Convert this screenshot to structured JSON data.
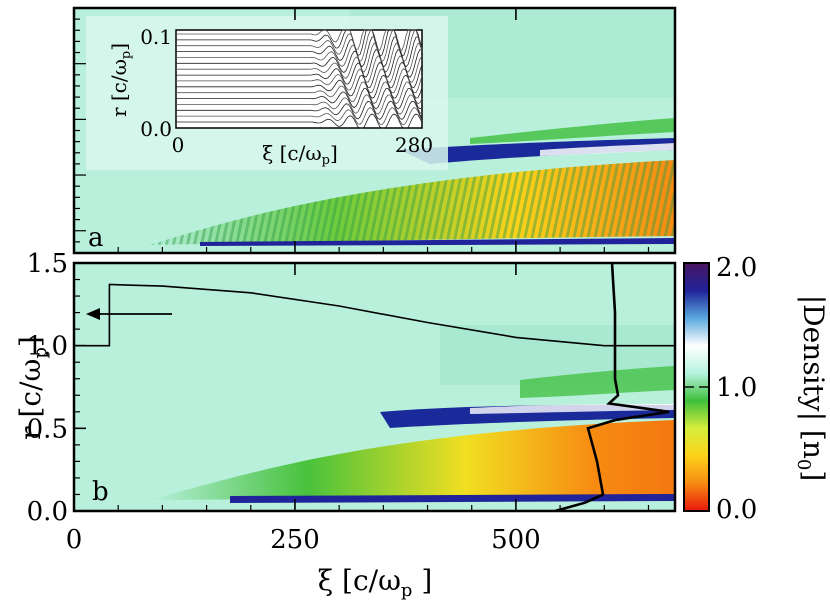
{
  "chart_data": [
    {
      "panel": "a",
      "type": "heatmap",
      "label": "a",
      "x_ticks": [
        250,
        500
      ],
      "xlim": [
        0,
        680
      ],
      "inset": {
        "type": "line",
        "xlabel": "ξ [c/ω",
        "xlabel_sub": "p",
        "xlabel_end": "]",
        "ylabel": "r [c/ω",
        "ylabel_sub": "p",
        "ylabel_end": "]",
        "x_tick_labels": [
          "0",
          "280"
        ],
        "y_tick_labels": [
          "0.0",
          "0.1"
        ],
        "xlim": [
          0,
          280
        ],
        "ylim": [
          0,
          0.1
        ],
        "line_count": 16
      }
    },
    {
      "panel": "b",
      "type": "heatmap",
      "label": "b",
      "xlabel": "ξ [c/ω",
      "xlabel_sub": "p",
      "xlabel_end": " ]",
      "ylabel": "r [c/ω",
      "ylabel_sub": "p",
      "ylabel_end": "]",
      "x_tick_labels": [
        "0",
        "250",
        "500"
      ],
      "x_ticks": [
        0,
        250,
        500
      ],
      "y_tick_labels": [
        "0.0",
        "0.5",
        "1.0",
        "1.5"
      ],
      "y_ticks": [
        0,
        0.5,
        1.0,
        1.5
      ],
      "xlim": [
        0,
        680
      ],
      "ylim": [
        0,
        1.5
      ],
      "driver_profile": {
        "x": [
          0,
          40,
          40,
          100,
          200,
          300,
          400,
          500,
          600,
          680
        ],
        "r": [
          1.0,
          1.0,
          1.37,
          1.36,
          1.32,
          1.24,
          1.14,
          1.05,
          1.0,
          1.0
        ]
      },
      "density_lineout": {
        "r": [
          0.0,
          0.05,
          0.1,
          0.3,
          0.5,
          0.55,
          0.6,
          0.65,
          0.7,
          0.8,
          1.0,
          1.2,
          1.5
        ],
        "density": [
          0.0,
          0.5,
          0.8,
          0.7,
          0.55,
          1.0,
          1.9,
          0.9,
          1.05,
          1.0,
          1.0,
          1.0,
          0.95
        ]
      },
      "colorbar": {
        "title": "|Density|  [n",
        "title_sub": "0",
        "title_end": "]",
        "tick_labels": [
          "0.0",
          "1.0",
          "2.0"
        ],
        "ticks": [
          0,
          1,
          2
        ],
        "colors": [
          "#e8180a",
          "#f78a12",
          "#fcd21a",
          "#d6ee3c",
          "#3fbf3c",
          "#b6f2e0",
          "#ffffff",
          "#5aa8de",
          "#20239a",
          "#4a1560"
        ]
      }
    }
  ]
}
